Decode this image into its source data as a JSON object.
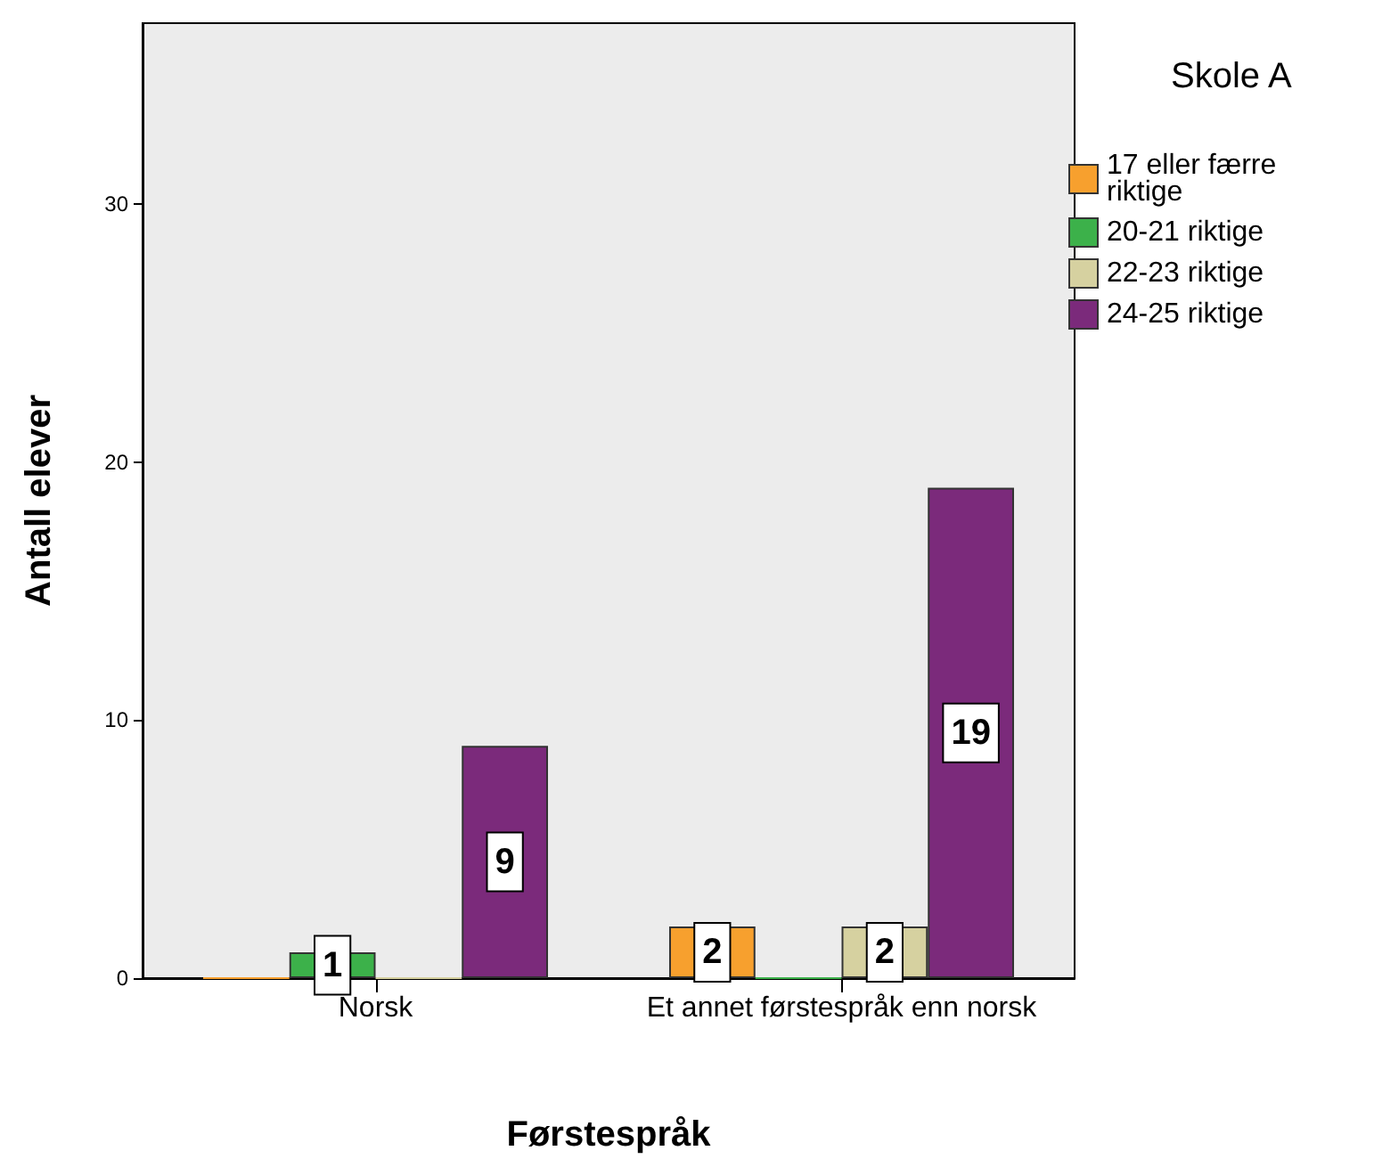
{
  "chart_data": {
    "type": "bar",
    "xlabel": "Førstespråk",
    "ylabel": "Antall elever",
    "legend_title": "Skole A",
    "categories": [
      "Norsk",
      "Et annet førstespråk enn norsk"
    ],
    "series": [
      {
        "name": "17 eller færre riktige",
        "color": "#f7a02e",
        "values": [
          0,
          2
        ],
        "value_labels": [
          null,
          "2"
        ]
      },
      {
        "name": "20-21 riktige",
        "color": "#3cb14a",
        "values": [
          1,
          0
        ],
        "value_labels": [
          "1",
          null
        ]
      },
      {
        "name": "22-23 riktige",
        "color": "#d6d1a0",
        "values": [
          0,
          2
        ],
        "value_labels": [
          null,
          "2"
        ]
      },
      {
        "name": "24-25 riktige",
        "color": "#7b2a7b",
        "values": [
          9,
          19
        ],
        "value_labels": [
          "9",
          "19"
        ]
      }
    ],
    "ylim": [
      0,
      37
    ],
    "yticks": [
      0,
      10,
      20,
      30
    ],
    "grid": false,
    "legend": "right"
  }
}
